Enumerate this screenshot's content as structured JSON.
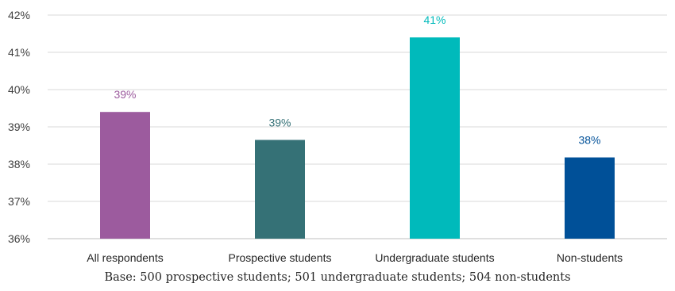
{
  "chart_data": {
    "type": "bar",
    "categories": [
      "All respondents",
      "Prospective students",
      "Undergraduate students",
      "Non-students"
    ],
    "values": [
      39.4,
      38.65,
      41.4,
      38.18
    ],
    "data_labels": [
      "39%",
      "39%",
      "41%",
      "38%"
    ],
    "colors": [
      "#9c5b9e",
      "#357176",
      "#00babb",
      "#005098"
    ],
    "y_ticks": [
      "36%",
      "37%",
      "38%",
      "39%",
      "40%",
      "41%",
      "42%"
    ],
    "ylim": [
      36,
      42
    ],
    "grid": true,
    "legend": "none",
    "title": "",
    "xlabel": "",
    "ylabel": ""
  },
  "footnote": "Base: 500 prospective students; 501 undergraduate students; 504 non-students"
}
